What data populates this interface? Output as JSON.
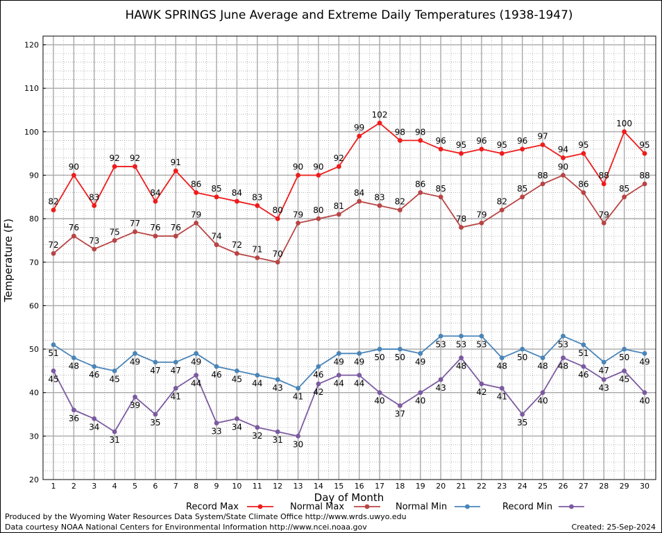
{
  "chart_data": {
    "type": "line",
    "title": "HAWK SPRINGS June Average and Extreme Daily Temperatures (1938-1947)",
    "xlabel": "Day of Month",
    "ylabel": "Temperature (F)",
    "ylim": [
      20,
      122
    ],
    "yticks": [
      20,
      30,
      40,
      50,
      60,
      70,
      80,
      90,
      100,
      110,
      120
    ],
    "x": [
      1,
      2,
      3,
      4,
      5,
      6,
      7,
      8,
      9,
      10,
      11,
      12,
      13,
      14,
      15,
      16,
      17,
      18,
      19,
      20,
      21,
      22,
      23,
      24,
      25,
      26,
      27,
      28,
      29,
      30
    ],
    "grid": true,
    "legend_position": "bottom",
    "series": [
      {
        "name": "Record Max",
        "color": "#ee1c1c",
        "values": [
          82,
          90,
          83,
          92,
          92,
          84,
          91,
          86,
          85,
          84,
          83,
          80,
          90,
          90,
          92,
          99,
          102,
          98,
          98,
          96,
          95,
          96,
          95,
          96,
          97,
          94,
          95,
          88,
          100,
          95
        ]
      },
      {
        "name": "Normal Max",
        "color": "#b84444",
        "values": [
          72,
          76,
          73,
          75,
          77,
          76,
          76,
          79,
          74,
          72,
          71,
          70,
          79,
          80,
          81,
          84,
          83,
          82,
          86,
          85,
          78,
          79,
          82,
          85,
          88,
          90,
          86,
          79,
          85,
          88
        ]
      },
      {
        "name": "Normal Min",
        "color": "#4a85b8",
        "values": [
          51,
          48,
          46,
          45,
          49,
          47,
          47,
          49,
          46,
          45,
          44,
          43,
          41,
          46,
          49,
          49,
          50,
          50,
          49,
          53,
          53,
          53,
          48,
          50,
          48,
          53,
          51,
          47,
          50,
          49
        ]
      },
      {
        "name": "Record Min",
        "color": "#7b5aa0",
        "values": [
          45,
          36,
          34,
          31,
          39,
          35,
          41,
          44,
          33,
          34,
          32,
          31,
          30,
          42,
          44,
          44,
          40,
          37,
          40,
          43,
          48,
          42,
          41,
          35,
          40,
          48,
          46,
          43,
          45,
          40
        ]
      }
    ]
  },
  "footer": {
    "line1": "Produced by the Wyoming Water Resources Data System/State Climate Office http://www.wrds.uwyo.edu",
    "line2": "Data courtesy NOAA National Centers for Environmental Information http://www.ncei.noaa.gov",
    "created": "Created:  25-Sep-2024"
  }
}
